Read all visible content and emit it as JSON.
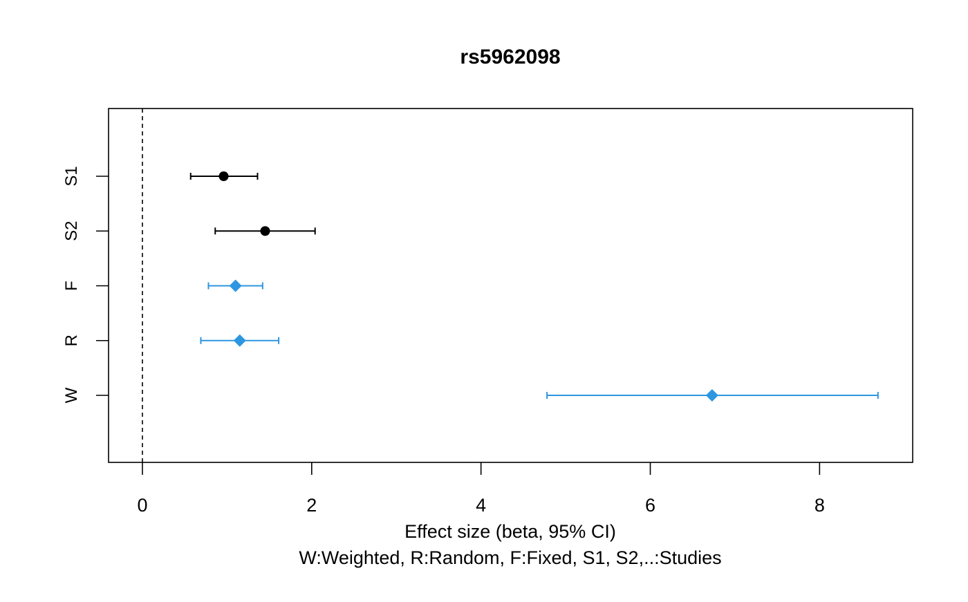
{
  "chart_data": {
    "type": "forest",
    "title": "rs5962098",
    "xlabel": "Effect size (beta, 95% CI)",
    "subtitle": "W:Weighted, R:Random, F:Fixed, S1, S2,..:Studies",
    "xlim": [
      -0.4,
      9.1
    ],
    "xticks": [
      0,
      2,
      4,
      6,
      8
    ],
    "reference_line": 0,
    "grid": false,
    "categories": [
      "S1",
      "S2",
      "F",
      "R",
      "W"
    ],
    "series": [
      {
        "label": "S1",
        "estimate": 0.96,
        "lower": 0.57,
        "upper": 1.36,
        "kind": "study",
        "color": "#000000"
      },
      {
        "label": "S2",
        "estimate": 1.45,
        "lower": 0.86,
        "upper": 2.04,
        "kind": "study",
        "color": "#000000"
      },
      {
        "label": "F",
        "estimate": 1.1,
        "lower": 0.78,
        "upper": 1.42,
        "kind": "meta",
        "color": "#2d96e0"
      },
      {
        "label": "R",
        "estimate": 1.15,
        "lower": 0.69,
        "upper": 1.61,
        "kind": "meta",
        "color": "#2d96e0"
      },
      {
        "label": "W",
        "estimate": 6.73,
        "lower": 4.78,
        "upper": 8.69,
        "kind": "meta",
        "color": "#2d96e0"
      }
    ]
  }
}
